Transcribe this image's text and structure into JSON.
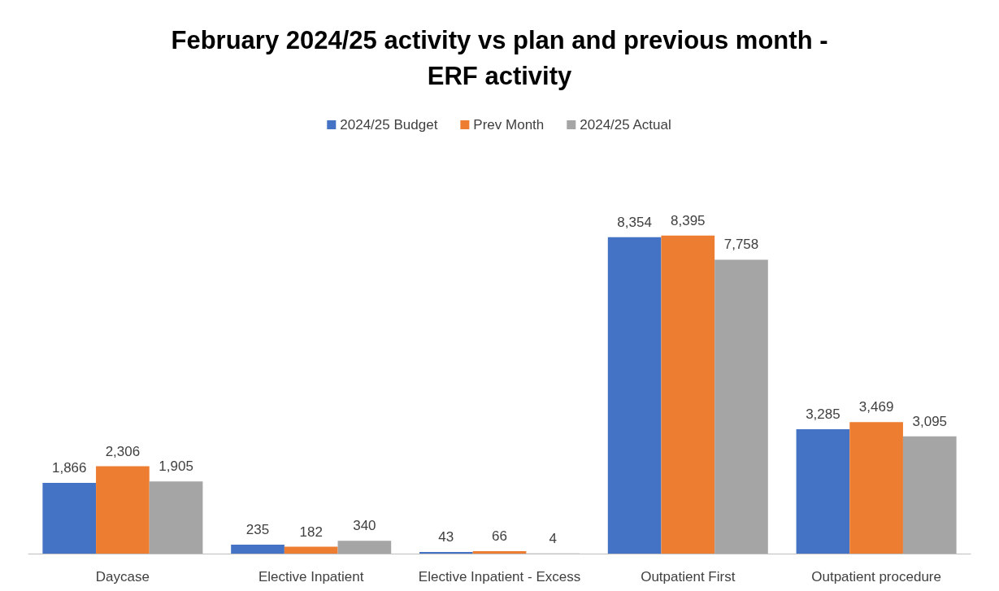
{
  "chart_data": {
    "type": "bar",
    "title": "February 2024/25 activity vs plan and previous month -\nERF activity",
    "categories": [
      "Daycase",
      "Elective Inpatient",
      "Elective Inpatient - Excess",
      "Outpatient First",
      "Outpatient procedure"
    ],
    "series": [
      {
        "name": "2024/25 Budget",
        "color": "#4472c4",
        "values": [
          1866,
          235,
          43,
          8354,
          3285
        ],
        "value_labels": [
          "1,866",
          "235",
          "43",
          "8,354",
          "3,285"
        ]
      },
      {
        "name": "Prev Month",
        "color": "#ed7d31",
        "values": [
          2306,
          182,
          66,
          8395,
          3469
        ],
        "value_labels": [
          "2,306",
          "182",
          "66",
          "8,395",
          "3,469"
        ]
      },
      {
        "name": "2024/25 Actual",
        "color": "#a5a5a5",
        "values": [
          1905,
          340,
          4,
          7758,
          3095
        ],
        "value_labels": [
          "1,905",
          "340",
          "4",
          "7,758",
          "3,095"
        ]
      }
    ],
    "legend": "top"
  }
}
